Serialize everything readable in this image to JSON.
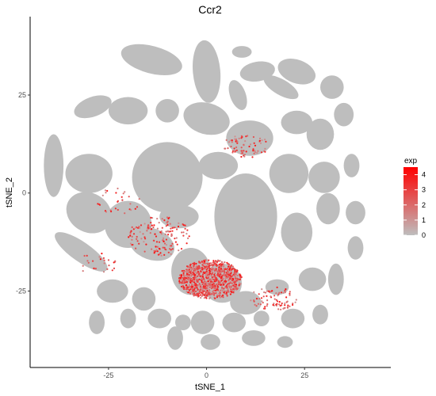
{
  "chart_data": {
    "type": "scatter",
    "title": "Ccr2",
    "xlabel": "tSNE_1",
    "ylabel": "tSNE_2",
    "xlim": [
      -45,
      47
    ],
    "ylim": [
      -44.5,
      45
    ],
    "x_ticks": [
      -25,
      0,
      25
    ],
    "y_ticks": [
      25,
      0,
      -25
    ],
    "x_tick_labels": [
      "-25",
      "0",
      "25"
    ],
    "y_tick_labels": [
      "25",
      "0",
      "-25"
    ],
    "grid": false,
    "legend": {
      "title": "exp",
      "position": "right",
      "range": [
        0,
        4.5
      ],
      "ticks": [
        4,
        3,
        2,
        1,
        0
      ],
      "tick_labels": [
        "4",
        "3",
        "2",
        "1",
        "0"
      ],
      "low_color": "#bebebe",
      "high_color": "#ff0000"
    },
    "point_color_zero": "#bebebe",
    "clusters": [
      {
        "cx": -14,
        "cy": 34,
        "rx": 8,
        "ry": 3.5,
        "rot": -15
      },
      {
        "cx": 0,
        "cy": 31,
        "rx": 3.5,
        "ry": 8,
        "rot": 5
      },
      {
        "cx": 9,
        "cy": 36,
        "rx": 2.5,
        "ry": 1.5,
        "rot": 0
      },
      {
        "cx": 13,
        "cy": 31,
        "rx": 4.5,
        "ry": 2.5,
        "rot": 10
      },
      {
        "cx": 23,
        "cy": 31,
        "rx": 5,
        "ry": 3,
        "rot": -20
      },
      {
        "cx": 19,
        "cy": 27,
        "rx": 5,
        "ry": 2,
        "rot": -30
      },
      {
        "cx": 8,
        "cy": 25,
        "rx": 2,
        "ry": 4,
        "rot": 20
      },
      {
        "cx": 32,
        "cy": 27,
        "rx": 3,
        "ry": 3,
        "rot": 0
      },
      {
        "cx": -29,
        "cy": 22,
        "rx": 5,
        "ry": 2.5,
        "rot": 20
      },
      {
        "cx": -20,
        "cy": 21,
        "rx": 5,
        "ry": 3.5,
        "rot": 0
      },
      {
        "cx": -10,
        "cy": 21,
        "rx": 3,
        "ry": 3,
        "rot": 0
      },
      {
        "cx": 0,
        "cy": 19,
        "rx": 6,
        "ry": 4,
        "rot": -15
      },
      {
        "cx": 11,
        "cy": 14,
        "rx": 6,
        "ry": 4.5,
        "rot": 0
      },
      {
        "cx": 23,
        "cy": 18,
        "rx": 4,
        "ry": 3,
        "rot": 0
      },
      {
        "cx": 29,
        "cy": 15,
        "rx": 3.5,
        "ry": 4,
        "rot": 0
      },
      {
        "cx": 35,
        "cy": 20,
        "rx": 2.5,
        "ry": 3,
        "rot": 0
      },
      {
        "cx": -7,
        "cy": 10,
        "rx": 1.8,
        "ry": 2,
        "rot": 0
      },
      {
        "cx": -39,
        "cy": 7,
        "rx": 2.5,
        "ry": 8,
        "rot": 0
      },
      {
        "cx": -30,
        "cy": 5,
        "rx": 6,
        "ry": 5,
        "rot": 0
      },
      {
        "cx": -10,
        "cy": 4,
        "rx": 9,
        "ry": 9,
        "rot": 0
      },
      {
        "cx": 3,
        "cy": 7,
        "rx": 5,
        "ry": 3.5,
        "rot": 0
      },
      {
        "cx": 21,
        "cy": 5,
        "rx": 5,
        "ry": 5,
        "rot": 0
      },
      {
        "cx": 30,
        "cy": 4,
        "rx": 4,
        "ry": 4,
        "rot": 0
      },
      {
        "cx": 37,
        "cy": 7,
        "rx": 2,
        "ry": 3,
        "rot": 0
      },
      {
        "cx": -30,
        "cy": -5,
        "rx": 6,
        "ry": 5,
        "rot": -30
      },
      {
        "cx": -20,
        "cy": -8,
        "rx": 6,
        "ry": 6,
        "rot": 0
      },
      {
        "cx": -7,
        "cy": -6,
        "rx": 5,
        "ry": 3,
        "rot": 0
      },
      {
        "cx": 10,
        "cy": -6,
        "rx": 8,
        "ry": 11,
        "rot": 0
      },
      {
        "cx": 23,
        "cy": -10,
        "rx": 4,
        "ry": 5,
        "rot": 0
      },
      {
        "cx": 31,
        "cy": -4,
        "rx": 3,
        "ry": 4,
        "rot": 0
      },
      {
        "cx": 38,
        "cy": -5,
        "rx": 2.5,
        "ry": 3,
        "rot": 0
      },
      {
        "cx": -32,
        "cy": -15,
        "rx": 8,
        "ry": 2.5,
        "rot": -35
      },
      {
        "cx": -14,
        "cy": -13,
        "rx": 6,
        "ry": 4,
        "rot": -20
      },
      {
        "cx": -4,
        "cy": -20,
        "rx": 5,
        "ry": 6,
        "rot": 0
      },
      {
        "cx": 4,
        "cy": -23,
        "rx": 5,
        "ry": 5,
        "rot": 0
      },
      {
        "cx": 10,
        "cy": -28,
        "rx": 4,
        "ry": 3,
        "rot": 0
      },
      {
        "cx": 18,
        "cy": -24,
        "rx": 3,
        "ry": 2,
        "rot": 0
      },
      {
        "cx": 27,
        "cy": -22,
        "rx": 3.5,
        "ry": 3,
        "rot": 0
      },
      {
        "cx": 33,
        "cy": -22,
        "rx": 2,
        "ry": 4,
        "rot": 0
      },
      {
        "cx": 38,
        "cy": -14,
        "rx": 2,
        "ry": 3,
        "rot": 0
      },
      {
        "cx": -24,
        "cy": -25,
        "rx": 4,
        "ry": 3,
        "rot": 0
      },
      {
        "cx": -16,
        "cy": -27,
        "rx": 3,
        "ry": 3,
        "rot": 0
      },
      {
        "cx": -28,
        "cy": -33,
        "rx": 2,
        "ry": 3,
        "rot": 0
      },
      {
        "cx": -20,
        "cy": -32,
        "rx": 2,
        "ry": 2.5,
        "rot": 0
      },
      {
        "cx": -12,
        "cy": -32,
        "rx": 3,
        "ry": 2.5,
        "rot": 0
      },
      {
        "cx": -6,
        "cy": -33,
        "rx": 2,
        "ry": 2,
        "rot": 0
      },
      {
        "cx": -1,
        "cy": -33,
        "rx": 3,
        "ry": 3,
        "rot": 0
      },
      {
        "cx": 7,
        "cy": -33,
        "rx": 3,
        "ry": 2.5,
        "rot": 0
      },
      {
        "cx": 14,
        "cy": -32,
        "rx": 2,
        "ry": 2,
        "rot": 0
      },
      {
        "cx": 22,
        "cy": -32,
        "rx": 3,
        "ry": 2.5,
        "rot": 0
      },
      {
        "cx": 29,
        "cy": -31,
        "rx": 2,
        "ry": 2.5,
        "rot": 0
      },
      {
        "cx": -8,
        "cy": -37,
        "rx": 2,
        "ry": 3,
        "rot": 0
      },
      {
        "cx": 1,
        "cy": -38,
        "rx": 2.5,
        "ry": 2,
        "rot": 0
      },
      {
        "cx": 12,
        "cy": -37,
        "rx": 3,
        "ry": 2,
        "rot": 0
      },
      {
        "cx": 20,
        "cy": -38,
        "rx": 2,
        "ry": 1.5,
        "rot": 0
      }
    ],
    "expression_hotspots": [
      {
        "cx": 1,
        "cy": -22,
        "rx": 8,
        "ry": 5,
        "density": 900
      },
      {
        "cx": -12,
        "cy": -11,
        "rx": 8,
        "ry": 5,
        "density": 150
      },
      {
        "cx": 10,
        "cy": 12,
        "rx": 6,
        "ry": 3,
        "density": 70
      },
      {
        "cx": 17,
        "cy": -27,
        "rx": 6,
        "ry": 3,
        "density": 80
      },
      {
        "cx": -22,
        "cy": -2,
        "rx": 6,
        "ry": 4,
        "density": 30
      },
      {
        "cx": -28,
        "cy": -18,
        "rx": 5,
        "ry": 3,
        "density": 25
      }
    ]
  }
}
